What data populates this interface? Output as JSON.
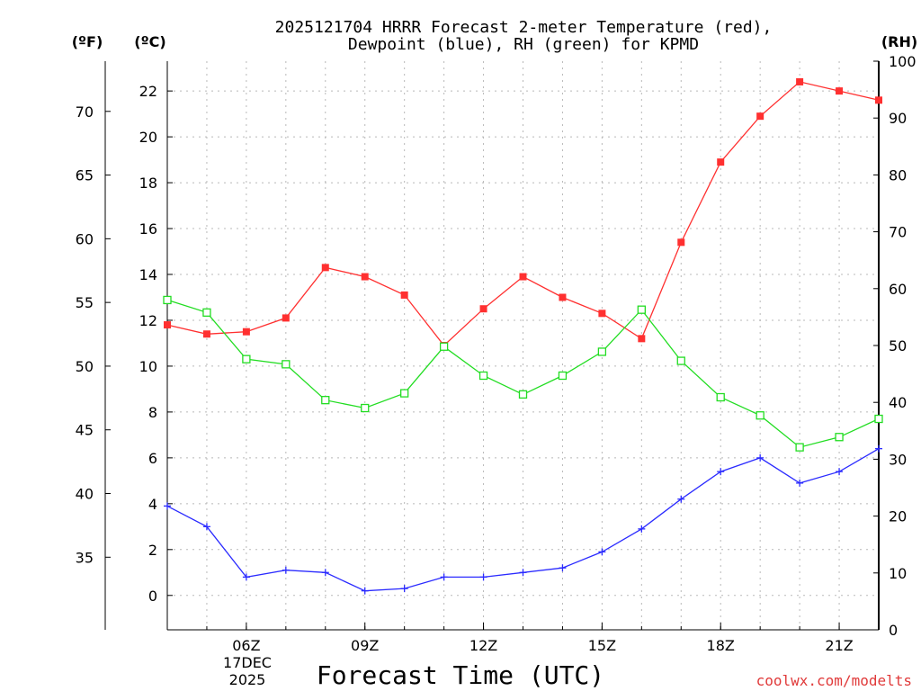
{
  "chart_data": {
    "type": "line",
    "title": [
      "2025121704 HRRR Forecast 2-meter Temperature (red),",
      "Dewpoint (blue), RH (green) for KPMD"
    ],
    "xlabel": "Forecast Time (UTC)",
    "credit": "coolwx.com/modelts",
    "units": {
      "fahrenheit": "(ºF)",
      "celsius": "(ºC)",
      "rh": "(RH)"
    },
    "x_hours": [
      4,
      5,
      6,
      7,
      8,
      9,
      10,
      11,
      12,
      13,
      14,
      15,
      16,
      17,
      18,
      19,
      20,
      21,
      22
    ],
    "xlim": [
      4,
      22
    ],
    "x_ticks": [
      {
        "hour": 6,
        "label": "06Z"
      },
      {
        "hour": 9,
        "label": "09Z"
      },
      {
        "hour": 12,
        "label": "12Z"
      },
      {
        "hour": 15,
        "label": "15Z"
      },
      {
        "hour": 18,
        "label": "18Z"
      },
      {
        "hour": 21,
        "label": "21Z"
      }
    ],
    "date_label": [
      "17DEC",
      "2025"
    ],
    "celsius_axis": {
      "ylim": [
        -1.5,
        23.3
      ],
      "ticks": [
        0,
        2,
        4,
        6,
        8,
        10,
        12,
        14,
        16,
        18,
        20,
        22
      ]
    },
    "fahrenheit_axis": {
      "ticks": [
        35,
        40,
        45,
        50,
        55,
        60,
        65,
        70
      ]
    },
    "rh_axis": {
      "ylim": [
        0,
        100
      ],
      "ticks": [
        0,
        10,
        20,
        30,
        40,
        50,
        60,
        70,
        80,
        90,
        100
      ]
    },
    "series": [
      {
        "name": "2-meter Temperature",
        "axis": "celsius",
        "color": "#ff3030",
        "marker": "filled-square",
        "values": [
          11.8,
          11.4,
          11.5,
          12.1,
          14.3,
          13.9,
          13.1,
          10.9,
          12.5,
          13.9,
          13.0,
          12.3,
          11.2,
          15.4,
          18.9,
          20.9,
          22.4,
          22.0,
          21.6
        ]
      },
      {
        "name": "Dewpoint",
        "axis": "celsius",
        "color": "#2b2bff",
        "marker": "plus",
        "values": [
          3.9,
          3.0,
          0.8,
          1.1,
          1.0,
          0.2,
          0.3,
          0.8,
          0.8,
          1.0,
          1.2,
          1.9,
          2.9,
          4.2,
          5.4,
          6.0,
          4.9,
          5.4,
          6.4
        ]
      },
      {
        "name": "RH",
        "axis": "rh",
        "color": "#22dd22",
        "marker": "open-square",
        "values": [
          58.0,
          55.8,
          47.6,
          46.7,
          40.4,
          39.0,
          41.6,
          49.8,
          44.7,
          41.4,
          44.7,
          48.9,
          56.3,
          47.3,
          40.9,
          37.7,
          32.1,
          33.9,
          37.1
        ]
      }
    ]
  }
}
